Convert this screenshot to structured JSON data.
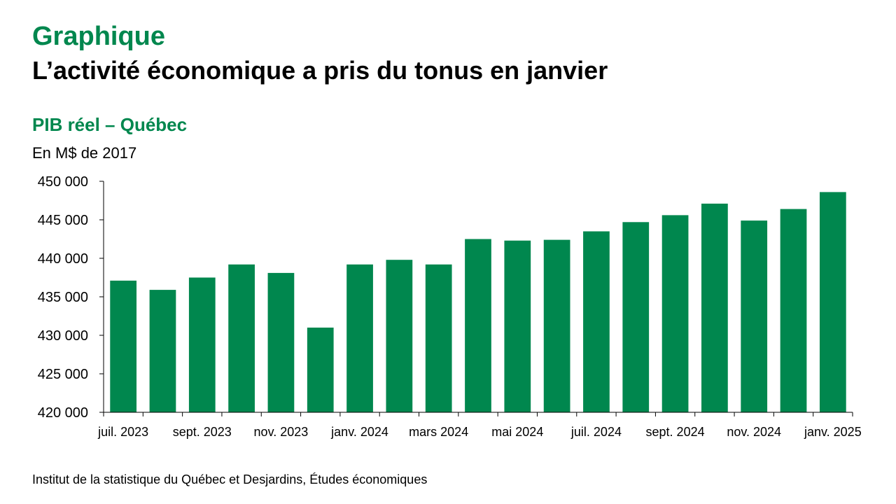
{
  "header": {
    "kicker": "Graphique",
    "headline": "L’activité économique a pris du tonus en janvier"
  },
  "colors": {
    "brand_green": "#00874E",
    "bar": "#00874E",
    "axis": "#000000"
  },
  "chart_data": {
    "type": "bar",
    "title": "PIB réel – Québec",
    "units_label": "En M$ de 2017",
    "xlabel": "",
    "ylabel": "",
    "ylim": [
      420000,
      450000
    ],
    "yticks": [
      420000,
      425000,
      430000,
      435000,
      440000,
      445000,
      450000
    ],
    "ytick_labels": [
      "420 000",
      "425 000",
      "430 000",
      "435 000",
      "440 000",
      "445 000",
      "450 000"
    ],
    "categories": [
      "juil. 2023",
      "août 2023",
      "sept. 2023",
      "oct. 2023",
      "nov. 2023",
      "déc. 2023",
      "janv. 2024",
      "févr. 2024",
      "mars 2024",
      "avr. 2024",
      "mai 2024",
      "juin 2024",
      "juil. 2024",
      "août 2024",
      "sept. 2024",
      "oct. 2024",
      "nov. 2024",
      "déc. 2024",
      "janv. 2025"
    ],
    "xtick_labels": [
      "juil. 2023",
      "",
      "sept. 2023",
      "",
      "nov. 2023",
      "",
      "janv. 2024",
      "",
      "mars 2024",
      "",
      "mai 2024",
      "",
      "juil. 2024",
      "",
      "sept. 2024",
      "",
      "nov. 2024",
      "",
      "janv. 2025"
    ],
    "values": [
      437100,
      435900,
      437500,
      439200,
      438100,
      431000,
      439200,
      439800,
      439200,
      442500,
      442300,
      442400,
      443500,
      444700,
      445600,
      447100,
      444900,
      446400,
      448600
    ],
    "grid": false,
    "legend": "none"
  },
  "footer": {
    "source": "Institut de la statistique du Québec et Desjardins, Études économiques"
  }
}
